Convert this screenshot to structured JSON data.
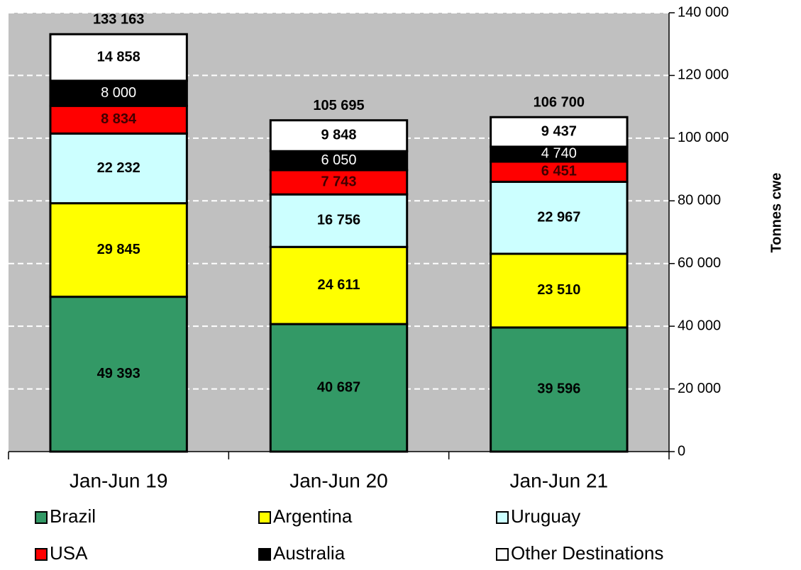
{
  "chart_data": {
    "type": "stacked_bar",
    "categories": [
      "Jan-Jun 19",
      "Jan-Jun 20",
      "Jan-Jun 21"
    ],
    "series": [
      {
        "name": "Brazil",
        "color": "#339966",
        "label_color": "#000000",
        "values": [
          49393,
          40687,
          39596
        ],
        "value_labels": [
          "49 393",
          "40 687",
          "39 596"
        ]
      },
      {
        "name": "Argentina",
        "color": "#ffff00",
        "label_color": "#000000",
        "values": [
          29845,
          24611,
          23510
        ],
        "value_labels": [
          "29 845",
          "24 611",
          "23 510"
        ]
      },
      {
        "name": "Uruguay",
        "color": "#ccffff",
        "label_color": "#000000",
        "values": [
          22232,
          16756,
          22967
        ],
        "value_labels": [
          "22 232",
          "16 756",
          "22 967"
        ]
      },
      {
        "name": "USA",
        "color": "#ff0000",
        "label_color": "#400000",
        "values": [
          8834,
          7743,
          6451
        ],
        "value_labels": [
          "8 834",
          "7 743",
          "6 451"
        ]
      },
      {
        "name": "Australia",
        "color": "#000000",
        "label_color": "#ffffff",
        "values": [
          8000,
          6050,
          4740
        ],
        "value_labels": [
          "8 000",
          "6 050",
          "4 740"
        ]
      },
      {
        "name": "Other Destinations",
        "color": "#ffffff",
        "label_color": "#000000",
        "values": [
          14858,
          9848,
          9437
        ],
        "value_labels": [
          "14 858",
          "9 848",
          "9 437"
        ]
      }
    ],
    "totals": [
      133163,
      105695,
      106700
    ],
    "totals_labels": [
      "133 163",
      "105 695",
      "106 700"
    ],
    "ylabel": "Tonnes cwe",
    "ylim": [
      0,
      140000
    ],
    "yticks": [
      0,
      {
        "value": 20000,
        "label": "20 000"
      },
      {
        "value": 40000,
        "label": "40 000"
      },
      {
        "value": 60000,
        "label": "60 000"
      },
      {
        "value": 80000,
        "label": "80 000"
      },
      {
        "value": 100000,
        "label": "100 000"
      },
      {
        "value": 120000,
        "label": "120 000"
      },
      {
        "value": 140000,
        "label": "140 000"
      }
    ],
    "grid": true,
    "legend": "bottom"
  }
}
